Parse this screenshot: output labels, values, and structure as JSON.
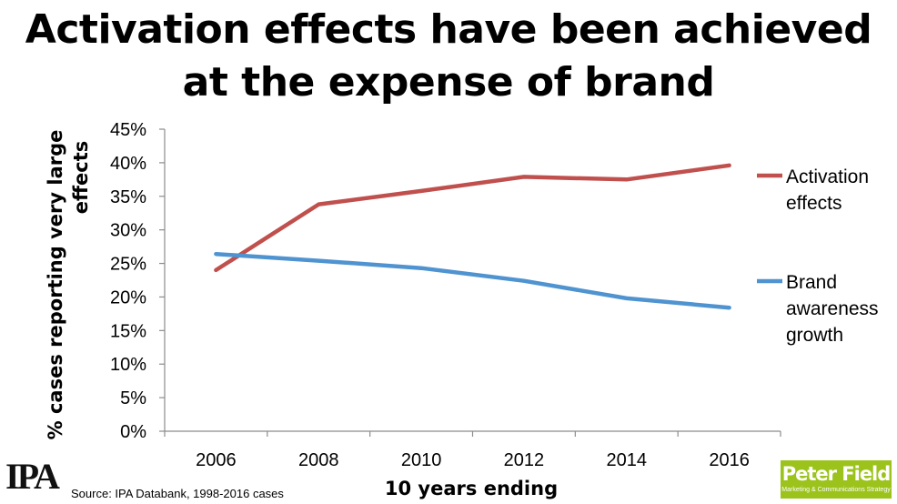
{
  "title_lines": [
    "Activation effects have been achieved",
    "at the expense of brand"
  ],
  "source": "Source: IPA Databank, 1998-2016 cases",
  "logos": {
    "left": "IPA",
    "right_name": "Peter Field",
    "right_tagline": "Marketing & Communications Strategy",
    "right_color": "#9bc31c"
  },
  "chart_data": {
    "type": "line",
    "title": "Activation effects have been achieved at the expense of brand",
    "xlabel": "10 years ending",
    "ylabel": "% cases reporting very large effects",
    "categories": [
      "2006",
      "2008",
      "2010",
      "2012",
      "2014",
      "2016"
    ],
    "y_ticks": [
      "0%",
      "5%",
      "10%",
      "15%",
      "20%",
      "25%",
      "30%",
      "35%",
      "40%",
      "45%"
    ],
    "ylim": [
      0,
      45
    ],
    "grid": false,
    "legend_position": "right",
    "series": [
      {
        "name": "Activation effects",
        "legend_lines": [
          "Activation",
          "effects"
        ],
        "color": "#c0504d",
        "values": [
          24.0,
          33.8,
          35.8,
          37.9,
          37.5,
          39.6
        ]
      },
      {
        "name": "Brand awareness growth",
        "legend_lines": [
          "Brand",
          "awareness",
          "growth"
        ],
        "color": "#4f93d0",
        "values": [
          26.4,
          25.4,
          24.3,
          22.4,
          19.8,
          18.4
        ]
      }
    ]
  }
}
